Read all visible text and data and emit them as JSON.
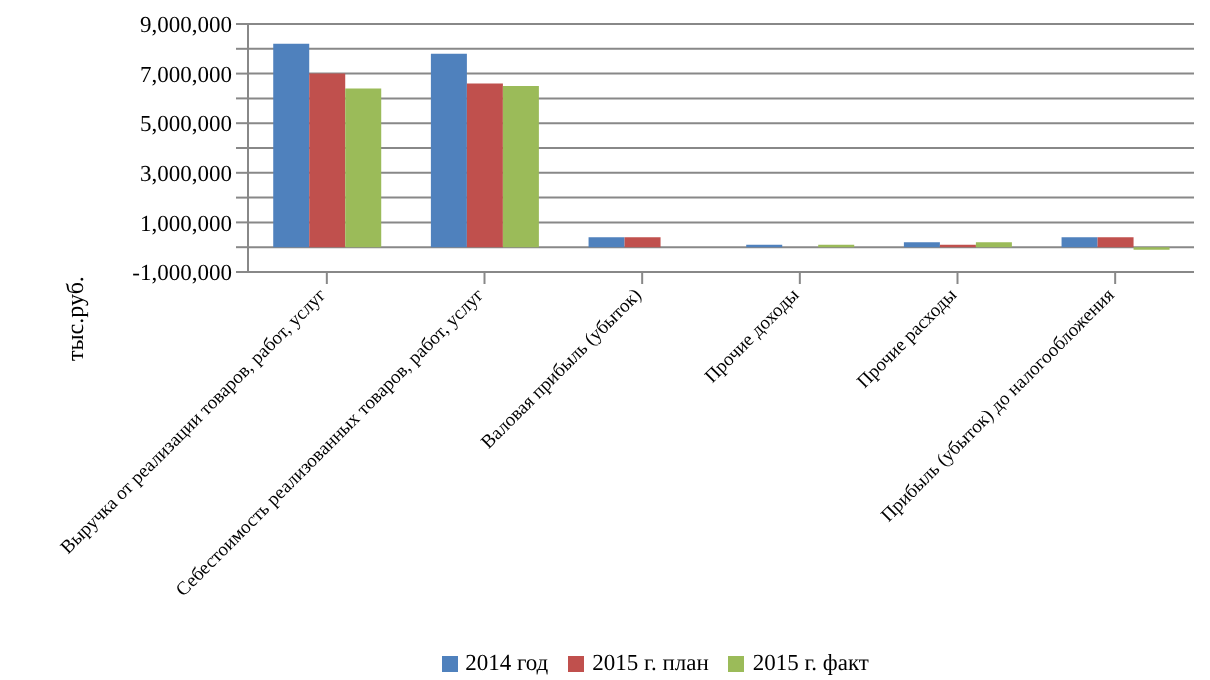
{
  "chart_data": {
    "type": "bar",
    "ylabel": "тыс.руб.",
    "categories": [
      "Выручка от реализации товаров, работ, услуг",
      "Себестоимость реализованных товаров, работ, услуг",
      "Валовая прибыль (убыток)",
      "Прочие доходы",
      "Прочие расходы",
      "Прибыль (убыток) до налогообложения"
    ],
    "series": [
      {
        "name": "2014 год",
        "color": "#4f81bd",
        "values": [
          8200000,
          7800000,
          400000,
          100000,
          200000,
          400000
        ]
      },
      {
        "name": "2015 г. план",
        "color": "#c0504d",
        "values": [
          7000000,
          6600000,
          400000,
          0,
          100000,
          400000
        ]
      },
      {
        "name": "2015 г. факт",
        "color": "#9bbb59",
        "values": [
          6400000,
          6500000,
          0,
          100000,
          200000,
          -100000
        ]
      }
    ],
    "ylim": [
      -1000000,
      9000000
    ],
    "yticks": [
      {
        "value": -1000000,
        "label": "-1,000,000"
      },
      {
        "value": 0,
        "label": null
      },
      {
        "value": 1000000,
        "label": "1,000,000"
      },
      {
        "value": 2000000,
        "label": null
      },
      {
        "value": 3000000,
        "label": "3,000,000"
      },
      {
        "value": 4000000,
        "label": null
      },
      {
        "value": 5000000,
        "label": "5,000,000"
      },
      {
        "value": 6000000,
        "label": null
      },
      {
        "value": 7000000,
        "label": "7,000,000"
      },
      {
        "value": 8000000,
        "label": null
      },
      {
        "value": 9000000,
        "label": "9,000,000"
      }
    ],
    "grid": "y",
    "legend": "bottom"
  }
}
